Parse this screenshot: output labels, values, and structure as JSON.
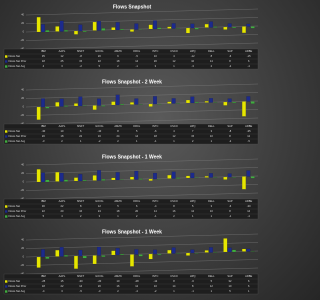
{
  "chart_data": [
    {
      "type": "bar",
      "title": "Flows Snapshot",
      "categories": [
        "IBM",
        "AAPL",
        "MSFT",
        "GOOG",
        "AMZN",
        "ORCL",
        "INTC",
        "CSCO",
        "HPQ",
        "DELL",
        "SAP",
        "ADBE"
      ],
      "ylim": [
        -40,
        40
      ],
      "yticks": [
        -40,
        -20,
        0,
        20,
        40
      ],
      "grid": true,
      "series": [
        {
          "name": "Flows Net",
          "color": "#e6e600",
          "values": [
            35,
            12,
            -8,
            20,
            6,
            -5,
            10,
            4,
            -12,
            8,
            -6,
            -15
          ]
        },
        {
          "name": "Flows Net Prior",
          "color": "#1c2a8c",
          "values": [
            18,
            25,
            15,
            22,
            18,
            14,
            20,
            12,
            10,
            14,
            8,
            6
          ]
        },
        {
          "name": "Flows Net Avg",
          "color": "#3fae3f",
          "values": [
            4,
            3,
            -2,
            5,
            2,
            -1,
            3,
            1,
            -3,
            2,
            -2,
            -4
          ]
        }
      ]
    },
    {
      "type": "bar",
      "title": "Flows Snapshot - 2 Week",
      "categories": [
        "IBM",
        "AAPL",
        "MSFT",
        "GOOG",
        "AMZN",
        "ORCL",
        "INTC",
        "CSCO",
        "HPQ",
        "DELL",
        "SAP",
        "ADBE"
      ],
      "ylim": [
        -40,
        40
      ],
      "yticks": [
        -40,
        -20,
        0,
        20,
        40
      ],
      "grid": true,
      "series": [
        {
          "name": "Flows Net",
          "color": "#e6e600",
          "values": [
            -30,
            10,
            6,
            -10,
            8,
            5,
            -6,
            4,
            7,
            3,
            -8,
            -35
          ]
        },
        {
          "name": "Flows Net Prior",
          "color": "#1c2a8c",
          "values": [
            20,
            18,
            22,
            16,
            24,
            14,
            18,
            12,
            15,
            10,
            8,
            12
          ]
        },
        {
          "name": "Flows Net Avg",
          "color": "#3fae3f",
          "values": [
            -3,
            2,
            1,
            -2,
            2,
            1,
            -1,
            1,
            2,
            1,
            -2,
            -5
          ]
        }
      ]
    },
    {
      "type": "bar",
      "title": "Flows Snapshot - 1 Week",
      "categories": [
        "IBM",
        "AAPL",
        "MSFT",
        "GOOG",
        "AMZN",
        "ORCL",
        "INTC",
        "CSCO",
        "HPQ",
        "DELL",
        "SAP",
        "ADBE"
      ],
      "ylim": [
        -40,
        40
      ],
      "yticks": [
        -40,
        -20,
        0,
        20,
        40
      ],
      "grid": true,
      "series": [
        {
          "name": "Flows Net",
          "color": "#e6e600",
          "values": [
            30,
            22,
            8,
            12,
            5,
            6,
            -4,
            8,
            5,
            3,
            -6,
            -30
          ]
        },
        {
          "name": "Flows Net Prior",
          "color": "#1c2a8c",
          "values": [
            22,
            20,
            16,
            24,
            18,
            20,
            14,
            16,
            12,
            10,
            8,
            14
          ]
        },
        {
          "name": "Flows Net Avg",
          "color": "#3fae3f",
          "values": [
            5,
            4,
            2,
            3,
            1,
            2,
            -1,
            2,
            1,
            1,
            -1,
            -4
          ]
        }
      ]
    },
    {
      "type": "bar",
      "title": "Flows Snapshot - 1 Week",
      "categories": [
        "IBM",
        "AAPL",
        "MSFT",
        "GOOG",
        "AMZN",
        "ORCL",
        "INTC",
        "CSCO",
        "HPQ",
        "DELL",
        "SAP",
        "ADBE"
      ],
      "ylim": [
        -40,
        40
      ],
      "yticks": [
        -40,
        -20,
        0,
        20,
        40
      ],
      "grid": true,
      "series": [
        {
          "name": "Flows Net",
          "color": "#e6e600",
          "values": [
            -25,
            15,
            -30,
            -20,
            10,
            -28,
            -12,
            8,
            -6,
            5,
            32,
            6
          ]
        },
        {
          "name": "Flows Net Prior",
          "color": "#1c2a8c",
          "values": [
            18,
            22,
            14,
            20,
            16,
            12,
            10,
            14,
            8,
            12,
            10,
            6
          ]
        },
        {
          "name": "Flows Net Avg",
          "color": "#3fae3f",
          "values": [
            -4,
            3,
            -5,
            -3,
            2,
            -4,
            -2,
            1,
            -1,
            1,
            5,
            1
          ]
        }
      ]
    }
  ]
}
